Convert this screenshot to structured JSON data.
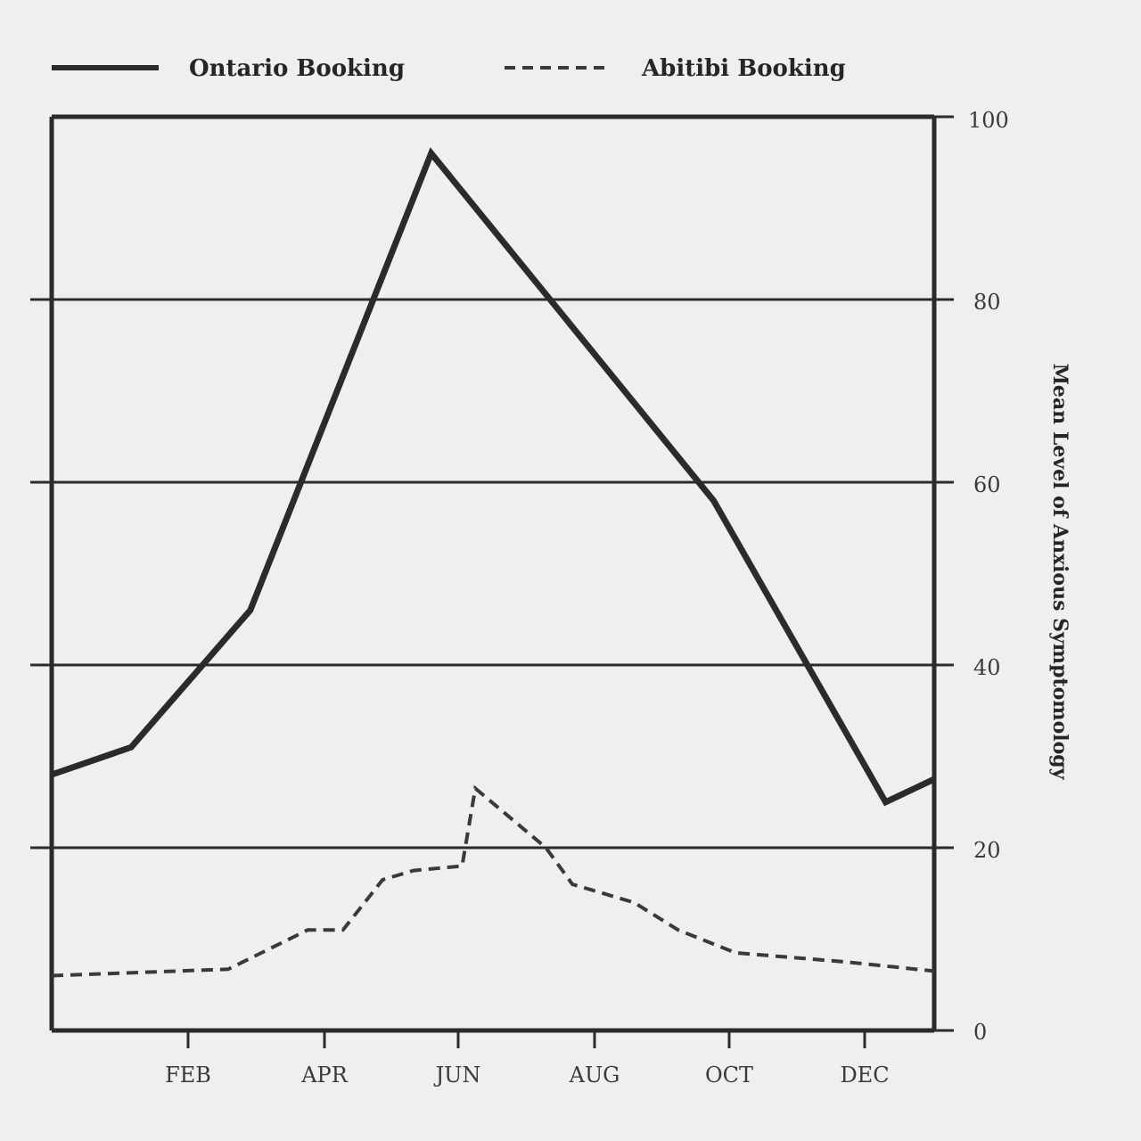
{
  "chart_data": {
    "type": "line",
    "title": "",
    "xlabel": "",
    "ylabel": "Mean Level of Anxious Symptomology",
    "x_tick_labels": [
      "FEB",
      "APR",
      "JUN",
      "AUG",
      "OCT",
      "DEC"
    ],
    "yticks": [
      "0",
      "20",
      "40",
      "60",
      "80",
      "100"
    ],
    "ylim": [
      0,
      100
    ],
    "y_axis_position": "right",
    "grid": true,
    "legend_position": "top",
    "series": [
      {
        "name": "Ontario Booking",
        "style": "solid",
        "color": "#2b2b2b",
        "points": [
          {
            "x": 0.0,
            "y": 28.0
          },
          {
            "x": 1.8,
            "y": 31.0
          },
          {
            "x": 4.5,
            "y": 46.0
          },
          {
            "x": 8.6,
            "y": 96.0
          },
          {
            "x": 15.0,
            "y": 58.0
          },
          {
            "x": 18.9,
            "y": 25.0
          },
          {
            "x": 20.0,
            "y": 27.5
          }
        ]
      },
      {
        "name": "Abitibi Booking",
        "style": "dashed",
        "color": "#3a3a3a",
        "points": [
          {
            "x": 0.0,
            "y": 6.0
          },
          {
            "x": 4.0,
            "y": 6.7
          },
          {
            "x": 5.8,
            "y": 11.0
          },
          {
            "x": 6.6,
            "y": 11.0
          },
          {
            "x": 7.5,
            "y": 16.5
          },
          {
            "x": 8.2,
            "y": 17.5
          },
          {
            "x": 9.3,
            "y": 18.0
          },
          {
            "x": 9.6,
            "y": 26.5
          },
          {
            "x": 11.2,
            "y": 20.0
          },
          {
            "x": 11.8,
            "y": 16.0
          },
          {
            "x": 13.2,
            "y": 14.0
          },
          {
            "x": 14.2,
            "y": 11.0
          },
          {
            "x": 15.5,
            "y": 8.5
          },
          {
            "x": 18.0,
            "y": 7.5
          },
          {
            "x": 20.0,
            "y": 6.5
          }
        ]
      }
    ]
  }
}
